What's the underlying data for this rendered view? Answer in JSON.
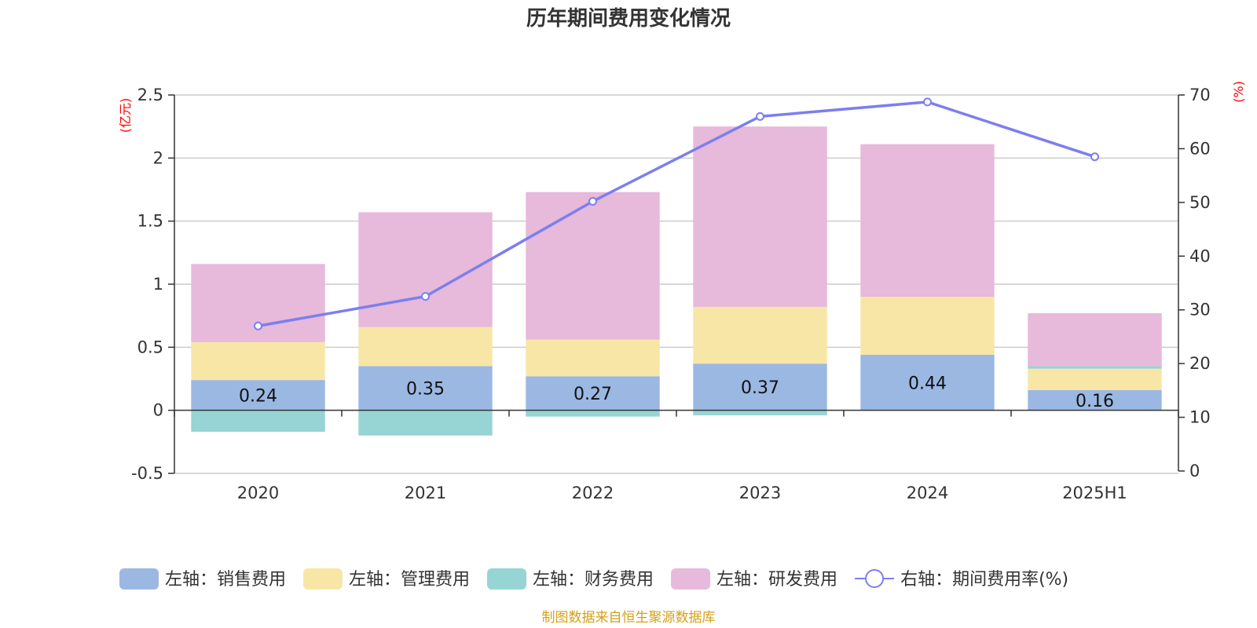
{
  "chart_data": {
    "type": "bar",
    "title": "历年期间费用变化情况",
    "categories": [
      "2020",
      "2021",
      "2022",
      "2023",
      "2024",
      "2025H1"
    ],
    "left_axis": {
      "unit": "(亿元)",
      "ylim": [
        -0.5,
        2.5
      ],
      "ticks": [
        "2.5",
        "2",
        "1.5",
        "1",
        "0.5",
        "0",
        "-0.5"
      ]
    },
    "right_axis": {
      "unit": "(%)",
      "ylim": [
        0,
        70
      ],
      "ticks": [
        "70",
        "60",
        "50",
        "40",
        "30",
        "20",
        "10",
        "0"
      ]
    },
    "series": [
      {
        "name": "左轴：销售费用",
        "axis": "left",
        "color": "#9bb8e3",
        "values": [
          0.24,
          0.35,
          0.27,
          0.37,
          0.44,
          0.16
        ],
        "labels": [
          "0.24",
          "0.35",
          "0.27",
          "0.37",
          "0.44",
          "0.16"
        ]
      },
      {
        "name": "左轴：管理费用",
        "axis": "left",
        "color": "#f8e6a6",
        "values": [
          0.3,
          0.31,
          0.29,
          0.45,
          0.46,
          0.17
        ]
      },
      {
        "name": "左轴：财务费用",
        "axis": "left",
        "color": "#97d4d4",
        "values": [
          -0.17,
          -0.2,
          -0.05,
          -0.04,
          0.0,
          0.02
        ]
      },
      {
        "name": "左轴：研发费用",
        "axis": "left",
        "color": "#e7b9da",
        "values": [
          0.62,
          0.91,
          1.17,
          1.43,
          1.21,
          0.42
        ]
      },
      {
        "name": "右轴：期间费用率(%)",
        "axis": "right",
        "type": "line",
        "color": "#7b7fef",
        "values": [
          27.0,
          32.5,
          50.2,
          66.0,
          68.7,
          58.5
        ]
      }
    ],
    "grid": true,
    "legend_position": "bottom"
  },
  "source_note": "制图数据来自恒生聚源数据库"
}
